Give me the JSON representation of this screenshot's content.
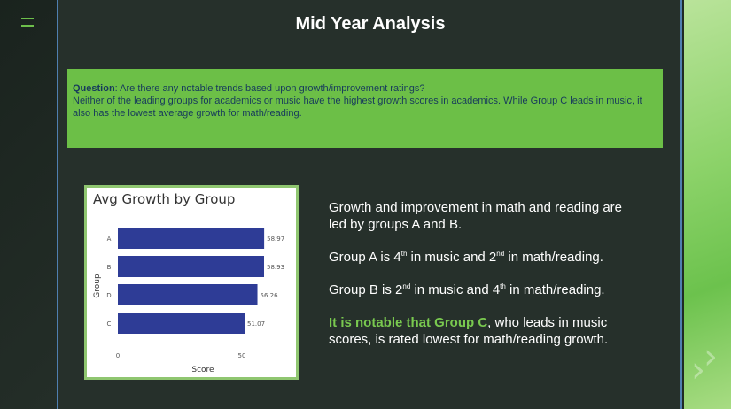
{
  "slide": {
    "title": "Mid Year Analysis",
    "question_label": "Question",
    "question_text": ": Are there any notable trends based upon growth/improvement ratings?",
    "answer_text": "Neither of the leading groups for academics or music have the highest growth scores in academics. While Group C leads in music, it also has the lowest average growth for math/reading."
  },
  "bullets": {
    "b1": "Growth and improvement in math and reading are led by groups A and B.",
    "b2_pre": "Group A is 4",
    "b2_sup1": "th",
    "b2_mid": " in music and 2",
    "b2_sup2": "nd",
    "b2_post": " in math/reading.",
    "b3_pre": "Group B is 2",
    "b3_sup1": "nd",
    "b3_mid": " in music and 4",
    "b3_sup2": "th",
    "b3_post": " in math/reading.",
    "b4_highlight": "It is notable that Group C",
    "b4_rest": ", who leads in music scores, is rated lowest for math/reading growth."
  },
  "colors": {
    "accent_green": "#6cbf47",
    "bar_blue": "#2e3c96",
    "highlight_green": "#79c94f"
  },
  "chart_data": {
    "type": "bar",
    "orientation": "horizontal",
    "title": "Avg Growth by Group",
    "xlabel": "Score",
    "ylabel": "Group",
    "categories": [
      "A",
      "B",
      "D",
      "C"
    ],
    "values": [
      58.97,
      58.93,
      56.26,
      51.07
    ],
    "value_labels": [
      "58.97",
      "58.93",
      "56.26",
      "51.07"
    ],
    "xticks": [
      "0",
      "50"
    ],
    "xlim": [
      0,
      60
    ]
  }
}
